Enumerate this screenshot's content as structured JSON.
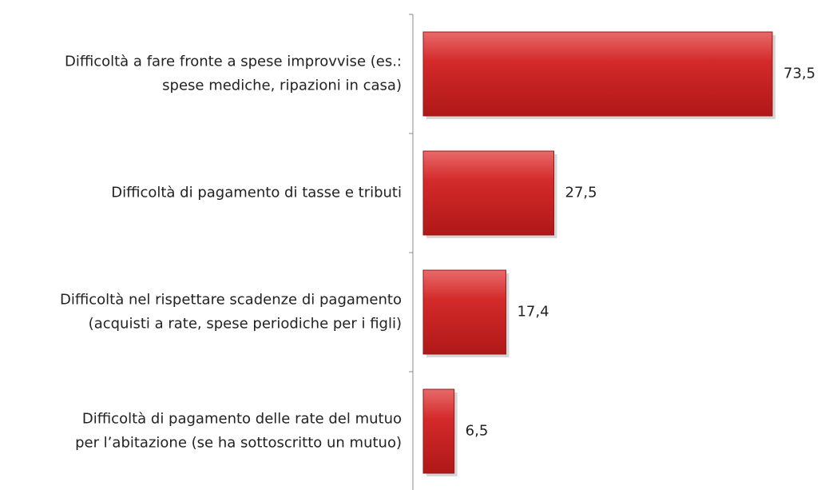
{
  "chart_data": {
    "type": "barh",
    "categories": [
      [
        "Difficoltà a fare fronte a spese improvvise (es.:",
        "spese mediche, ripazioni in casa)"
      ],
      [
        "Difficoltà di pagamento di tasse e tributi"
      ],
      [
        "Difficoltà nel rispettare scadenze di pagamento",
        "(acquisti a rate, spese periodiche per i figli)"
      ],
      [
        "Difficoltà di pagamento delle rate del mutuo",
        "per l’abitazione (se ha sottoscritto un mutuo)"
      ]
    ],
    "values": [
      73.5,
      27.5,
      17.4,
      6.5
    ],
    "value_labels": [
      "73,5",
      "27,5",
      "17,4",
      "6,5"
    ],
    "color": "#d42a2a"
  }
}
